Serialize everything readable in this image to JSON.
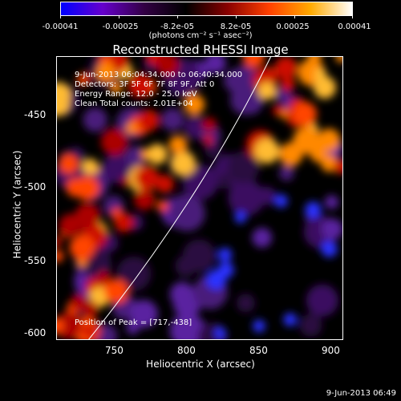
{
  "title": "Reconstructed RHESSI Image",
  "colorbar": {
    "ticks": [
      "-0.00041",
      "-0.00025",
      "-8.2e-05",
      "8.2e-05",
      "0.00025",
      "0.00041"
    ],
    "units": "(photons cm⁻² s⁻¹ asec⁻²)",
    "colors": [
      "#0000ff",
      "#6600cc",
      "#330044",
      "#000000",
      "#880000",
      "#ff4000",
      "#ffaa00",
      "#ffffff"
    ]
  },
  "axes": {
    "xlabel": "Heliocentric X (arcsec)",
    "ylabel": "Heliocentric Y (arcsec)",
    "xticks": [
      "750",
      "800",
      "850",
      "900"
    ],
    "yticks": [
      "-450",
      "-500",
      "-550",
      "-600"
    ]
  },
  "annotations": {
    "time": "9-Jun-2013 06:04:34.000 to 06:40:34.000",
    "detectors": "Detectors: 3F 5F 6F 7F 8F 9F, Att 0",
    "energy": "Energy Range: 12.0 - 25.0 keV",
    "clean": "Clean      Total counts: 2.01E+04",
    "peak": "Position of Peak = [717,-438]"
  },
  "footer_date": "9-Jun-2013 06:49"
}
